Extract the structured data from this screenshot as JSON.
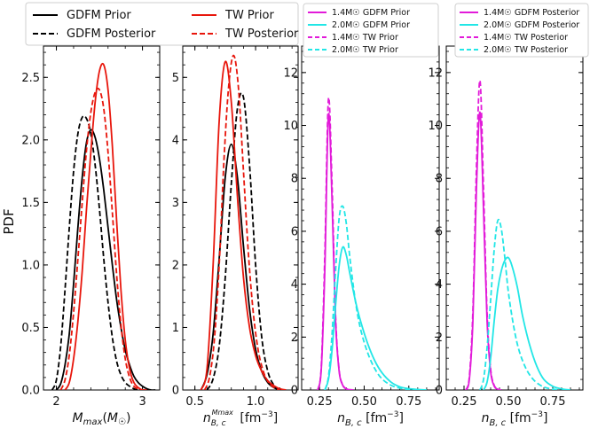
{
  "figure": {
    "ylabel": "PDF"
  },
  "colors": {
    "gdfm": "#000000",
    "tw": "#e8160c",
    "m14": "#e21bd9",
    "m20": "#22e6e6"
  },
  "legend_main": {
    "entries": [
      {
        "label": "GDFM Prior",
        "color": "#000000",
        "dash": false
      },
      {
        "label": "TW Prior",
        "color": "#e8160c",
        "dash": false
      },
      {
        "label": "GDFM Posterior",
        "color": "#000000",
        "dash": true
      },
      {
        "label": "TW Posterior",
        "color": "#e8160c",
        "dash": true
      }
    ]
  },
  "legend_prior": {
    "entries": [
      {
        "label": "1.4$M_\\odot$ GDFM Prior",
        "label_display": "1.4M☉ GDFM Prior",
        "color": "#e21bd9",
        "dash": false
      },
      {
        "label": "2.0$M_\\odot$ GDFM Prior",
        "label_display": "2.0M☉ GDFM Prior",
        "color": "#22e6e6",
        "dash": false
      },
      {
        "label": "1.4$M_\\odot$ TW Prior",
        "label_display": "1.4M☉ TW Prior",
        "color": "#e21bd9",
        "dash": true
      },
      {
        "label": "2.0$M_\\odot$ TW Prior",
        "label_display": "2.0M☉ TW Prior",
        "color": "#22e6e6",
        "dash": true
      }
    ]
  },
  "legend_post": {
    "entries": [
      {
        "label_display": "1.4M☉ GDFM Posterior",
        "color": "#e21bd9",
        "dash": false
      },
      {
        "label_display": "2.0M☉ GDFM Posterior",
        "color": "#22e6e6",
        "dash": false
      },
      {
        "label_display": "1.4M☉ TW Posterior",
        "color": "#e21bd9",
        "dash": true
      },
      {
        "label_display": "2.0M☉ TW Posterior",
        "color": "#22e6e6",
        "dash": true
      }
    ]
  },
  "chart_data": [
    {
      "type": "line",
      "xlabel": "M_max(M☉)",
      "ylabel": "PDF",
      "xlim": [
        1.85,
        3.2
      ],
      "ylim": [
        0,
        2.75
      ],
      "xticks": [
        2,
        3
      ],
      "xtick_labels": [
        "2",
        "3"
      ],
      "yticks": [
        0.0,
        0.5,
        1.0,
        1.5,
        2.0,
        2.5
      ],
      "ytick_labels": [
        "0.0",
        "0.5",
        "1.0",
        "1.5",
        "2.0",
        "2.5"
      ],
      "series": [
        {
          "name": "GDFM Prior",
          "color": "#000000",
          "dash": false,
          "x": [
            2.0,
            2.05,
            2.1,
            2.15,
            2.2,
            2.25,
            2.3,
            2.35,
            2.4,
            2.45,
            2.5,
            2.55,
            2.6,
            2.65,
            2.7,
            2.75,
            2.8,
            2.85,
            2.9,
            2.95,
            3.0,
            3.05,
            3.1,
            3.15
          ],
          "y": [
            0.0,
            0.05,
            0.2,
            0.45,
            0.85,
            1.3,
            1.7,
            1.98,
            2.08,
            2.02,
            1.85,
            1.6,
            1.3,
            1.0,
            0.72,
            0.5,
            0.32,
            0.2,
            0.11,
            0.06,
            0.03,
            0.01,
            0.0,
            0.0
          ]
        },
        {
          "name": "GDFM Posterior",
          "color": "#000000",
          "dash": true,
          "x": [
            1.95,
            2.0,
            2.05,
            2.1,
            2.15,
            2.2,
            2.25,
            2.3,
            2.35,
            2.4,
            2.45,
            2.5,
            2.55,
            2.6,
            2.65,
            2.7,
            2.75,
            2.8,
            2.85,
            2.9,
            2.95,
            3.0,
            3.05
          ],
          "y": [
            0.0,
            0.08,
            0.35,
            0.8,
            1.3,
            1.75,
            2.05,
            2.18,
            2.17,
            2.05,
            1.8,
            1.45,
            1.05,
            0.7,
            0.42,
            0.23,
            0.12,
            0.06,
            0.03,
            0.01,
            0.0,
            0.0,
            0.0
          ]
        },
        {
          "name": "TW Prior",
          "color": "#e8160c",
          "dash": false,
          "x": [
            2.1,
            2.15,
            2.2,
            2.25,
            2.3,
            2.35,
            2.4,
            2.45,
            2.5,
            2.55,
            2.6,
            2.65,
            2.7,
            2.75,
            2.8,
            2.85,
            2.9,
            2.95,
            3.0,
            3.05
          ],
          "y": [
            0.0,
            0.06,
            0.25,
            0.55,
            0.95,
            1.45,
            1.9,
            2.3,
            2.55,
            2.6,
            2.4,
            1.95,
            1.35,
            0.8,
            0.4,
            0.17,
            0.06,
            0.02,
            0.0,
            0.0
          ]
        },
        {
          "name": "TW Posterior",
          "color": "#e8160c",
          "dash": true,
          "x": [
            2.05,
            2.1,
            2.15,
            2.2,
            2.25,
            2.3,
            2.35,
            2.4,
            2.45,
            2.5,
            2.55,
            2.6,
            2.65,
            2.7,
            2.75,
            2.8,
            2.85,
            2.9,
            2.95,
            3.0
          ],
          "y": [
            0.0,
            0.08,
            0.28,
            0.62,
            1.05,
            1.5,
            1.92,
            2.22,
            2.38,
            2.4,
            2.25,
            1.9,
            1.42,
            0.92,
            0.52,
            0.25,
            0.1,
            0.03,
            0.01,
            0.0
          ]
        }
      ]
    },
    {
      "type": "line",
      "xlabel": "n_B,c^Mmax [fm⁻³]",
      "xlim": [
        0.4,
        1.35
      ],
      "ylim": [
        0,
        5.5
      ],
      "xticks": [
        0.5,
        1.0
      ],
      "xtick_labels": [
        "0.5",
        "1.0"
      ],
      "yticks": [
        0,
        1,
        2,
        3,
        4,
        5
      ],
      "ytick_labels": [
        "0",
        "1",
        "2",
        "3",
        "4",
        "5"
      ],
      "series": [
        {
          "name": "GDFM Prior",
          "color": "#000000",
          "dash": false,
          "x": [
            0.55,
            0.6,
            0.65,
            0.7,
            0.75,
            0.8,
            0.85,
            0.9,
            0.95,
            1.0,
            1.05,
            1.1,
            1.15,
            1.2
          ],
          "y": [
            0.0,
            0.25,
            0.9,
            2.1,
            3.4,
            3.93,
            3.4,
            2.3,
            1.3,
            0.65,
            0.3,
            0.12,
            0.04,
            0.0
          ]
        },
        {
          "name": "GDFM Posterior",
          "color": "#000000",
          "dash": true,
          "x": [
            0.6,
            0.65,
            0.7,
            0.75,
            0.8,
            0.85,
            0.9,
            0.95,
            1.0,
            1.05,
            1.1,
            1.15,
            1.2
          ],
          "y": [
            0.0,
            0.18,
            0.7,
            1.8,
            3.3,
            4.5,
            4.68,
            3.6,
            2.0,
            0.85,
            0.3,
            0.08,
            0.0
          ]
        },
        {
          "name": "TW Prior",
          "color": "#e8160c",
          "dash": false,
          "x": [
            0.55,
            0.6,
            0.65,
            0.7,
            0.75,
            0.8,
            0.85,
            0.9,
            0.95,
            1.0,
            1.05,
            1.1,
            1.15,
            1.2,
            1.25
          ],
          "y": [
            0.0,
            0.35,
            2.0,
            4.3,
            5.25,
            4.6,
            3.1,
            1.8,
            1.0,
            0.55,
            0.3,
            0.15,
            0.07,
            0.02,
            0.0
          ]
        },
        {
          "name": "TW Posterior",
          "color": "#e8160c",
          "dash": true,
          "x": [
            0.58,
            0.62,
            0.66,
            0.7,
            0.74,
            0.78,
            0.82,
            0.86,
            0.9,
            0.94,
            0.98,
            1.02,
            1.06,
            1.1,
            1.15,
            1.2
          ],
          "y": [
            0.0,
            0.2,
            0.8,
            2.0,
            3.7,
            4.9,
            5.35,
            4.8,
            3.5,
            2.2,
            1.25,
            0.65,
            0.32,
            0.14,
            0.04,
            0.0
          ]
        }
      ]
    },
    {
      "type": "line",
      "xlabel": "n_B,c [fm⁻³]",
      "xlim": [
        0.15,
        0.92
      ],
      "ylim": [
        0,
        13
      ],
      "xticks": [
        0.25,
        0.5,
        0.75
      ],
      "xtick_labels": [
        "0.25",
        "0.50",
        "0.75"
      ],
      "yticks": [
        0,
        2,
        4,
        6,
        8,
        10,
        12
      ],
      "ytick_labels": [
        "0",
        "2",
        "4",
        "6",
        "8",
        "10",
        "12"
      ],
      "series": [
        {
          "name": "1.4M☉ GDFM Prior",
          "color": "#e21bd9",
          "dash": false,
          "x": [
            0.24,
            0.26,
            0.28,
            0.3,
            0.32,
            0.34,
            0.36,
            0.38,
            0.4,
            0.42,
            0.44
          ],
          "y": [
            0.0,
            0.8,
            4.6,
            10.4,
            7.2,
            2.6,
            0.7,
            0.18,
            0.04,
            0.01,
            0.0
          ]
        },
        {
          "name": "1.4M☉ TW Prior",
          "color": "#e21bd9",
          "dash": true,
          "x": [
            0.24,
            0.26,
            0.28,
            0.3,
            0.32,
            0.34,
            0.36,
            0.38,
            0.4,
            0.42,
            0.44
          ],
          "y": [
            0.0,
            0.9,
            5.2,
            11.0,
            7.8,
            2.8,
            0.75,
            0.2,
            0.05,
            0.01,
            0.0
          ]
        },
        {
          "name": "2.0M☉ GDFM Prior",
          "color": "#22e6e6",
          "dash": false,
          "x": [
            0.28,
            0.3,
            0.32,
            0.34,
            0.36,
            0.38,
            0.4,
            0.42,
            0.45,
            0.48,
            0.52,
            0.56,
            0.6,
            0.65,
            0.7,
            0.75,
            0.8,
            0.85
          ],
          "y": [
            0.0,
            0.4,
            1.5,
            3.2,
            4.7,
            5.4,
            5.1,
            4.4,
            3.4,
            2.6,
            1.75,
            1.1,
            0.65,
            0.3,
            0.12,
            0.05,
            0.02,
            0.0
          ]
        },
        {
          "name": "2.0M☉ TW Prior",
          "color": "#22e6e6",
          "dash": true,
          "x": [
            0.28,
            0.3,
            0.32,
            0.34,
            0.36,
            0.38,
            0.4,
            0.42,
            0.45,
            0.48,
            0.52,
            0.56,
            0.6,
            0.65,
            0.7,
            0.75,
            0.8
          ],
          "y": [
            0.0,
            0.5,
            2.1,
            4.5,
            6.5,
            6.95,
            6.3,
            5.0,
            3.4,
            2.3,
            1.4,
            0.8,
            0.42,
            0.18,
            0.07,
            0.02,
            0.0
          ]
        }
      ]
    },
    {
      "type": "line",
      "xlabel": "n_B,c [fm⁻³]",
      "xlim": [
        0.15,
        0.92
      ],
      "ylim": [
        0,
        13
      ],
      "xticks": [
        0.25,
        0.5,
        0.75
      ],
      "xtick_labels": [
        "0.25",
        "0.50",
        "0.75"
      ],
      "yticks": [
        0,
        2,
        4,
        6,
        8,
        10,
        12
      ],
      "ytick_labels": [
        "0",
        "2",
        "4",
        "6",
        "8",
        "10",
        "12"
      ],
      "series": [
        {
          "name": "1.4M☉ GDFM Posterior",
          "color": "#e21bd9",
          "dash": false,
          "x": [
            0.26,
            0.28,
            0.3,
            0.32,
            0.34,
            0.36,
            0.38,
            0.4,
            0.42,
            0.44,
            0.46
          ],
          "y": [
            0.0,
            0.4,
            2.6,
            7.6,
            10.5,
            6.8,
            2.6,
            0.7,
            0.15,
            0.03,
            0.0
          ]
        },
        {
          "name": "1.4M☉ TW Posterior",
          "color": "#e21bd9",
          "dash": true,
          "x": [
            0.26,
            0.28,
            0.3,
            0.32,
            0.34,
            0.36,
            0.38,
            0.4,
            0.42,
            0.44,
            0.46
          ],
          "y": [
            0.0,
            0.5,
            3.0,
            8.4,
            11.7,
            7.6,
            2.9,
            0.8,
            0.18,
            0.04,
            0.0
          ]
        },
        {
          "name": "2.0M☉ GDFM Posterior",
          "color": "#22e6e6",
          "dash": false,
          "x": [
            0.36,
            0.38,
            0.4,
            0.42,
            0.44,
            0.46,
            0.48,
            0.5,
            0.52,
            0.55,
            0.58,
            0.62,
            0.66,
            0.7,
            0.75,
            0.8,
            0.85
          ],
          "y": [
            0.0,
            0.3,
            1.2,
            2.6,
            3.8,
            4.5,
            4.9,
            5.0,
            4.7,
            3.9,
            2.8,
            1.7,
            0.9,
            0.4,
            0.14,
            0.04,
            0.0
          ]
        },
        {
          "name": "2.0M☉ TW Posterior",
          "color": "#22e6e6",
          "dash": true,
          "x": [
            0.34,
            0.36,
            0.38,
            0.4,
            0.42,
            0.44,
            0.46,
            0.48,
            0.5,
            0.53,
            0.56,
            0.6,
            0.64,
            0.68,
            0.72,
            0.78
          ],
          "y": [
            0.0,
            0.4,
            1.6,
            3.4,
            5.3,
            6.4,
            6.1,
            5.0,
            3.7,
            2.4,
            1.5,
            0.8,
            0.4,
            0.18,
            0.07,
            0.0
          ]
        }
      ]
    }
  ]
}
